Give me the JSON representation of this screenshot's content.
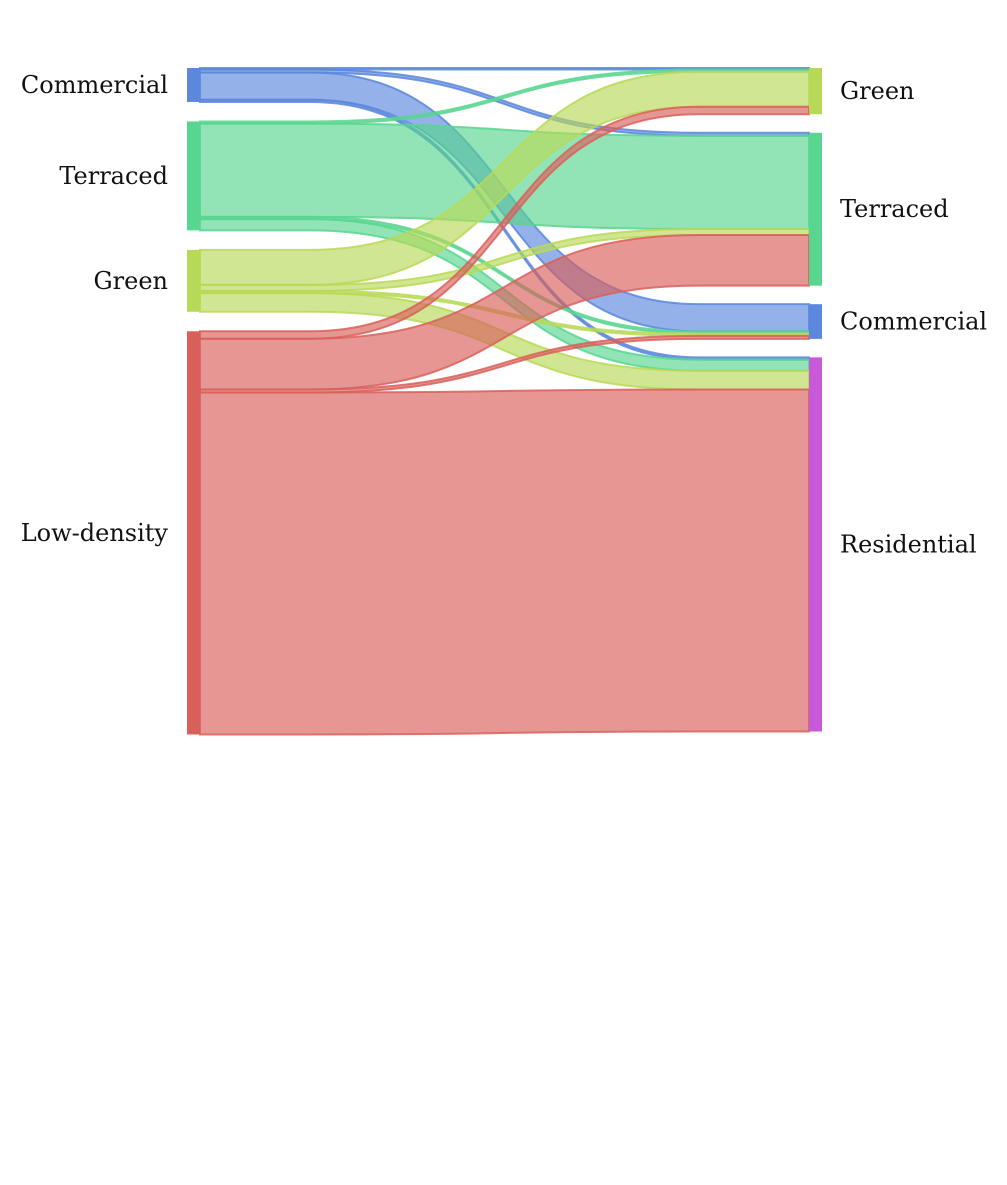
{
  "colors": {
    "commercial": "#5b87dd",
    "terraced": "#58d68f",
    "green": "#b8d957",
    "lowdensity": "#d9605a",
    "residential": "#c85ad9"
  },
  "sankey": {
    "left_nodes": [
      {
        "id": "commercial",
        "label": "Commercial",
        "color_key": "commercial"
      },
      {
        "id": "terraced",
        "label": "Terraced",
        "color_key": "terraced"
      },
      {
        "id": "green",
        "label": "Green",
        "color_key": "green"
      },
      {
        "id": "lowdensity",
        "label": "Low-density",
        "color_key": "lowdensity"
      }
    ],
    "right_nodes": [
      {
        "id": "green",
        "label": "Green",
        "color_key": "green"
      },
      {
        "id": "terraced",
        "label": "Terraced",
        "color_key": "terraced"
      },
      {
        "id": "commercial",
        "label": "Commercial",
        "color_key": "commercial"
      },
      {
        "id": "residential",
        "label": "Residential",
        "color_key": "residential"
      }
    ],
    "flows": [
      {
        "from": "commercial",
        "to": "green",
        "value": 0.4
      },
      {
        "from": "commercial",
        "to": "terraced",
        "value": 0.8
      },
      {
        "from": "commercial",
        "to": "commercial",
        "value": 7.3
      },
      {
        "from": "commercial",
        "to": "residential",
        "value": 0.6
      },
      {
        "from": "terraced",
        "to": "green",
        "value": 0.6
      },
      {
        "from": "terraced",
        "to": "terraced",
        "value": 25.0
      },
      {
        "from": "terraced",
        "to": "commercial",
        "value": 0.6
      },
      {
        "from": "terraced",
        "to": "residential",
        "value": 3.0
      },
      {
        "from": "green",
        "to": "green",
        "value": 9.4
      },
      {
        "from": "green",
        "to": "terraced",
        "value": 1.6
      },
      {
        "from": "green",
        "to": "commercial",
        "value": 0.6
      },
      {
        "from": "green",
        "to": "residential",
        "value": 5.0
      },
      {
        "from": "lowdensity",
        "to": "green",
        "value": 2.0
      },
      {
        "from": "lowdensity",
        "to": "terraced",
        "value": 13.6
      },
      {
        "from": "lowdensity",
        "to": "commercial",
        "value": 0.8
      },
      {
        "from": "lowdensity",
        "to": "residential",
        "value": 91.7
      }
    ]
  }
}
